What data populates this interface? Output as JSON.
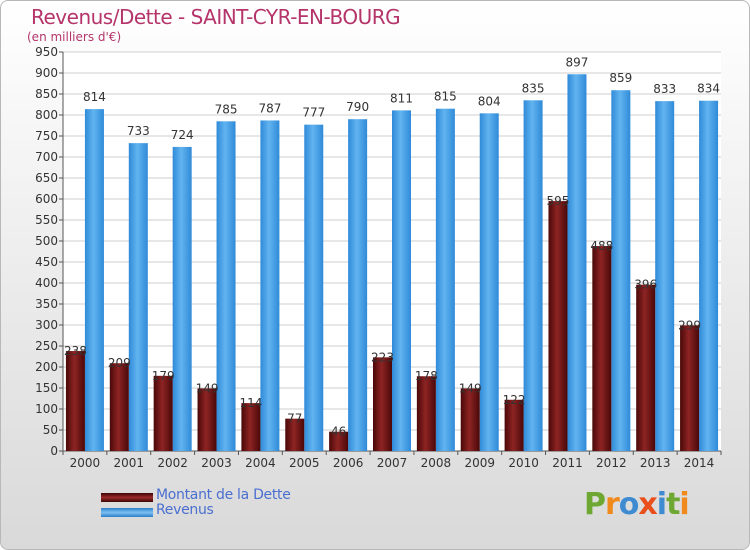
{
  "title": "Revenus/Dette - SAINT-CYR-EN-BOURG",
  "subtitle": "(en milliers d'€)",
  "logo": "Proxiti",
  "legend": [
    "Montant de la Dette",
    "Revenus"
  ],
  "colors": {
    "title": "#b5346a",
    "dette": "#7a1414",
    "revenus": "#3e9ae0",
    "legend_text": "#4a6fd0",
    "grid": "#cfcfcf",
    "axis_text": "#333333"
  },
  "chart_data": {
    "type": "bar",
    "title": "Revenus/Dette - SAINT-CYR-EN-BOURG",
    "subtitle": "(en milliers d'€)",
    "xlabel": "",
    "ylabel": "",
    "ylim": [
      0,
      950
    ],
    "y_ticks": [
      0,
      50,
      100,
      150,
      200,
      250,
      300,
      350,
      400,
      450,
      500,
      550,
      600,
      650,
      700,
      750,
      800,
      850,
      900,
      950
    ],
    "grid": true,
    "legend_position": "bottom-left",
    "categories": [
      "2000",
      "2001",
      "2002",
      "2003",
      "2004",
      "2005",
      "2006",
      "2007",
      "2008",
      "2009",
      "2010",
      "2011",
      "2012",
      "2013",
      "2014"
    ],
    "series": [
      {
        "name": "Montant de la Dette",
        "values": [
          238,
          209,
          179,
          149,
          114,
          77,
          46,
          223,
          178,
          149,
          122,
          595,
          488,
          396,
          299
        ]
      },
      {
        "name": "Revenus",
        "values": [
          814,
          733,
          724,
          785,
          787,
          777,
          790,
          811,
          815,
          804,
          835,
          897,
          859,
          833,
          834
        ]
      }
    ]
  }
}
